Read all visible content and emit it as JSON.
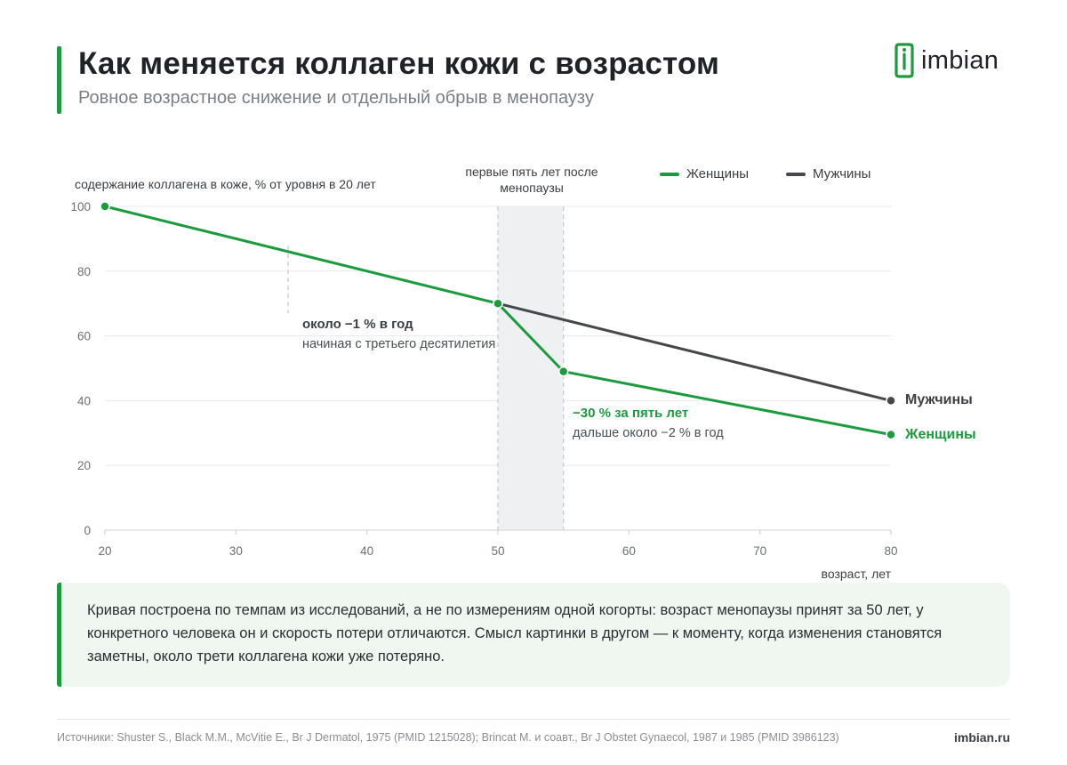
{
  "header": {
    "title": "Как меняется коллаген кожи с возрастом",
    "subtitle": "Ровное возрастное снижение и отдельный обрыв в менопаузу",
    "brand": "imbian"
  },
  "colors": {
    "accent": "#1b9a3e",
    "men": "#44474c",
    "shade": "#eff0f2",
    "grid": "#e8eaec"
  },
  "chart_data": {
    "type": "line",
    "ylabel": "содержание коллагена в коже, % от уровня в 20 лет",
    "xlabel": "возраст, лет",
    "xlim": [
      20,
      80
    ],
    "ylim": [
      0,
      100
    ],
    "x_ticks": [
      20,
      30,
      40,
      50,
      60,
      70,
      80
    ],
    "y_ticks": [
      0,
      20,
      40,
      60,
      80,
      100
    ],
    "grid": "horizontal",
    "legend_position": "top-right",
    "series": [
      {
        "name": "Женщины",
        "color": "#1b9a3e",
        "x": [
          20,
          50,
          55,
          80
        ],
        "y": [
          100,
          70,
          49,
          29.5
        ]
      },
      {
        "name": "Мужчины",
        "color": "#44474c",
        "x": [
          50,
          80
        ],
        "y": [
          70,
          40
        ]
      }
    ],
    "shaded_region": {
      "x": [
        50,
        55
      ],
      "label": "первые пять лет после менопаузы"
    },
    "annotations": [
      {
        "title": "около −1 % в год",
        "text": "начиная с третьего десятилетия"
      },
      {
        "title": "−30 % за пять лет",
        "text": "дальше около −2 % в год"
      }
    ],
    "end_labels": {
      "men": "Мужчины",
      "women": "Женщины"
    }
  },
  "note": "Кривая построена по темпам из исследований, а не по измерениям одной когорты: возраст менопаузы принят за 50 лет, у конкретного человека он и скорость потери отличаются. Смысл картинки в другом — к моменту, когда изменения становятся заметны, около трети коллагена кожи уже потеряно.",
  "footer": {
    "sources": "Источники: Shuster S., Black M.M., McVitie E., Br J Dermatol, 1975 (PMID 1215028); Brincat M. и соавт., Br J Obstet Gynaecol, 1987 и 1985 (PMID 3986123)",
    "site": "imbian.ru"
  }
}
